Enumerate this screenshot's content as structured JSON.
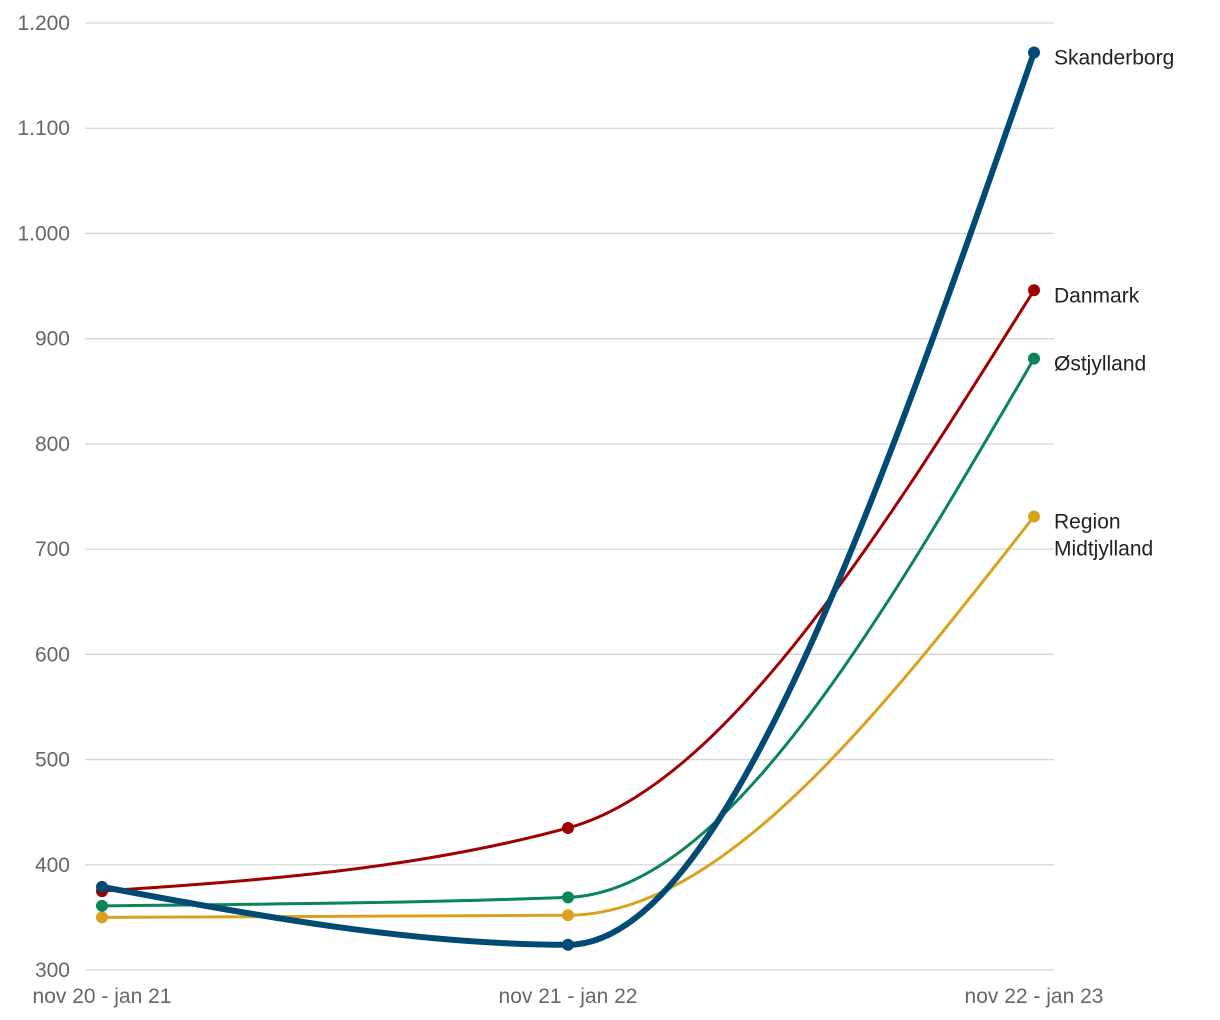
{
  "chart_data": {
    "type": "line",
    "title": "",
    "xlabel": "",
    "ylabel": "",
    "ylim": [
      300,
      1200
    ],
    "yticks": [
      "300",
      "400",
      "500",
      "600",
      "700",
      "800",
      "900",
      "1.000",
      "1.100",
      "1.200"
    ],
    "ytick_values": [
      300,
      400,
      500,
      600,
      700,
      800,
      900,
      1000,
      1100,
      1200
    ],
    "categories": [
      "nov 20 - jan 21",
      "nov 21 - jan 22",
      "nov 22 - jan 23"
    ],
    "grid": true,
    "series": [
      {
        "name": "Region Midtjylland",
        "label_lines": [
          "Region",
          "Midtjylland"
        ],
        "color": "#d8a21f",
        "values": [
          350,
          352,
          731
        ],
        "width": "normal"
      },
      {
        "name": "Østjylland",
        "label_lines": [
          "Østjylland"
        ],
        "color": "#0b8457",
        "values": [
          361,
          369,
          881
        ],
        "width": "normal"
      },
      {
        "name": "Danmark",
        "label_lines": [
          "Danmark"
        ],
        "color": "#a00000",
        "values": [
          375,
          435,
          946
        ],
        "width": "normal"
      },
      {
        "name": "Skanderborg",
        "label_lines": [
          "Skanderborg"
        ],
        "color": "#004b73",
        "values": [
          379,
          324,
          1172
        ],
        "width": "bold"
      }
    ]
  }
}
